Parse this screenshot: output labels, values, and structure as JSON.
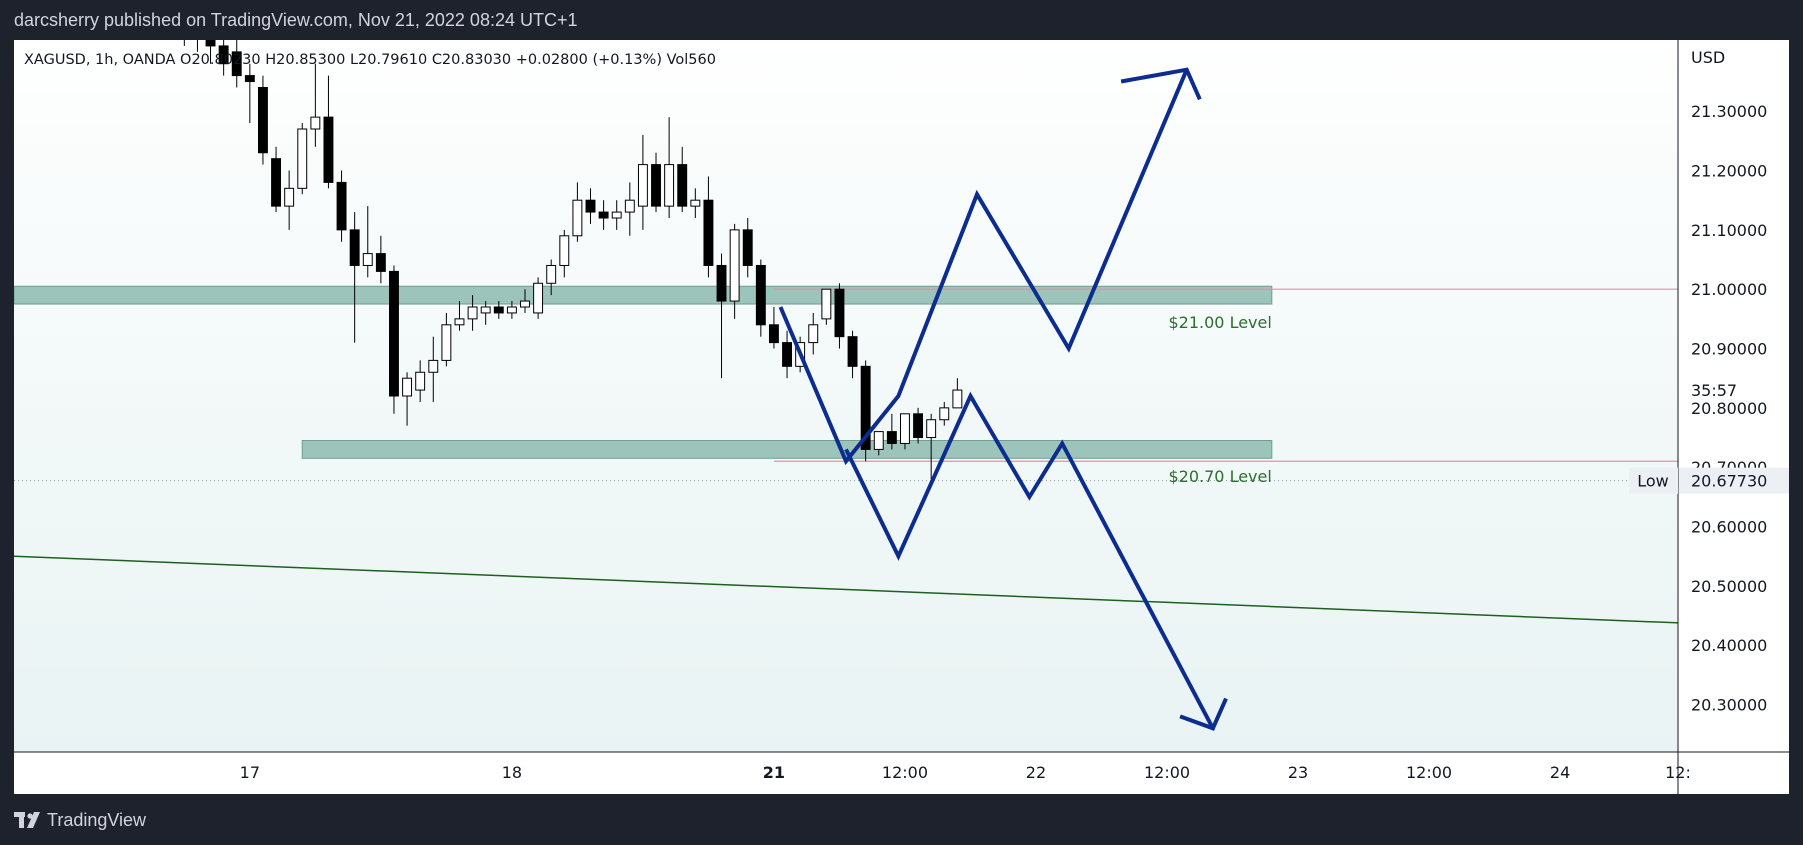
{
  "header": {
    "publisher": "darcsherry published on TradingView.com, Nov 21, 2022 08:24 UTC+1"
  },
  "footer": {
    "brand": "TradingView"
  },
  "colors": {
    "candle_up": "#ffffff",
    "candle_down": "#000000",
    "zone_fill": "#9dc4bb",
    "zone_border": "#6e9e92",
    "level_line": "#f18aa6",
    "trendline": "#1f5f1f",
    "projection": "#0d2c8f",
    "label_green": "#2e6d30"
  },
  "chart_data": {
    "type": "candlestick",
    "symbol_line": "XAGUSD, 1h, OANDA  O20.80230  H20.85300  L20.79610  C20.83030  +0.02800 (+0.13%)  Vol560",
    "currency": "USD",
    "ylim": [
      20.22,
      21.42
    ],
    "x_index_range": [
      -18,
      109
    ],
    "price_ticks": [
      "21.30000",
      "21.20000",
      "21.10000",
      "21.00000",
      "20.90000",
      "20.80000",
      "20.70000",
      "20.60000",
      "20.50000",
      "20.40000",
      "20.30000"
    ],
    "price_tick_values": [
      21.3,
      21.2,
      21.1,
      21.0,
      20.9,
      20.8,
      20.7,
      20.6,
      20.5,
      20.4,
      20.3
    ],
    "time_ticks": [
      {
        "label": "17",
        "index": 0,
        "bold": false
      },
      {
        "label": "18",
        "index": 20,
        "bold": false
      },
      {
        "label": "21",
        "index": 40,
        "bold": true
      },
      {
        "label": "12:00",
        "index": 50,
        "bold": false
      },
      {
        "label": "22",
        "index": 60,
        "bold": false
      },
      {
        "label": "12:00",
        "index": 70,
        "bold": false
      },
      {
        "label": "23",
        "index": 80,
        "bold": false
      },
      {
        "label": "12:00",
        "index": 90,
        "bold": false
      },
      {
        "label": "24",
        "index": 100,
        "bold": false
      },
      {
        "label": "12:",
        "index": 109,
        "bold": false
      }
    ],
    "countdown": {
      "label": "35:57",
      "price": 20.83
    },
    "low_marker": {
      "label": "Low",
      "value": "20.67730",
      "price": 20.6773
    },
    "zones": [
      {
        "from_index": -18,
        "to_index": 78,
        "top": 21.005,
        "bottom": 20.975
      },
      {
        "from_index": 4,
        "to_index": 78,
        "top": 20.745,
        "bottom": 20.715
      }
    ],
    "level_lines": [
      {
        "price": 21.0,
        "from_index": 40,
        "to_index": 118
      },
      {
        "price": 20.71,
        "from_index": 40,
        "to_index": 118
      }
    ],
    "labels": [
      {
        "text": "$21.00 Level",
        "price": 20.945,
        "index": 78
      },
      {
        "text": "$20.70 Level",
        "price": 20.685,
        "index": 78
      }
    ],
    "trendline": {
      "start": {
        "index": -18,
        "price": 20.55
      },
      "end": {
        "index": 112,
        "price": 20.435
      }
    },
    "projection_up": [
      {
        "index": 40.5,
        "price": 20.97
      },
      {
        "index": 45.5,
        "price": 20.71
      },
      {
        "index": 49.5,
        "price": 20.82
      },
      {
        "index": 55.5,
        "price": 21.16
      },
      {
        "index": 62.5,
        "price": 20.9
      },
      {
        "index": 71.5,
        "price": 21.37
      }
    ],
    "projection_up_head": [
      {
        "index": 66.5,
        "price": 21.35
      },
      {
        "index": 71.5,
        "price": 21.37
      },
      {
        "index": 72.5,
        "price": 21.32
      }
    ],
    "projection_down": [
      {
        "index": 45.5,
        "price": 20.73
      },
      {
        "index": 49.5,
        "price": 20.55
      },
      {
        "index": 55.0,
        "price": 20.82
      },
      {
        "index": 59.5,
        "price": 20.65
      },
      {
        "index": 62.0,
        "price": 20.74
      },
      {
        "index": 73.5,
        "price": 20.26
      }
    ],
    "projection_down_head": [
      {
        "index": 71.0,
        "price": 20.28
      },
      {
        "index": 73.5,
        "price": 20.26
      },
      {
        "index": 74.5,
        "price": 20.31
      }
    ],
    "candles": [
      {
        "t": -5,
        "o": 21.45,
        "h": 21.46,
        "l": 21.41,
        "c": 21.43
      },
      {
        "t": -4,
        "o": 21.44,
        "h": 21.46,
        "l": 21.4,
        "c": 21.45
      },
      {
        "t": -3,
        "o": 21.44,
        "h": 21.45,
        "l": 21.38,
        "c": 21.41
      },
      {
        "t": -2,
        "o": 21.41,
        "h": 21.43,
        "l": 21.36,
        "c": 21.38
      },
      {
        "t": -1,
        "o": 21.4,
        "h": 21.42,
        "l": 21.34,
        "c": 21.36
      },
      {
        "t": 0,
        "o": 21.36,
        "h": 21.38,
        "l": 21.28,
        "c": 21.35
      },
      {
        "t": 1,
        "o": 21.34,
        "h": 21.36,
        "l": 21.21,
        "c": 21.23
      },
      {
        "t": 2,
        "o": 21.22,
        "h": 21.24,
        "l": 21.13,
        "c": 21.14
      },
      {
        "t": 3,
        "o": 21.14,
        "h": 21.2,
        "l": 21.1,
        "c": 21.17
      },
      {
        "t": 4,
        "o": 21.17,
        "h": 21.28,
        "l": 21.16,
        "c": 21.27
      },
      {
        "t": 5,
        "o": 21.27,
        "h": 21.38,
        "l": 21.24,
        "c": 21.29
      },
      {
        "t": 6,
        "o": 21.29,
        "h": 21.36,
        "l": 21.17,
        "c": 21.18
      },
      {
        "t": 7,
        "o": 21.18,
        "h": 21.2,
        "l": 21.08,
        "c": 21.1
      },
      {
        "t": 8,
        "o": 21.1,
        "h": 21.13,
        "l": 20.91,
        "c": 21.04
      },
      {
        "t": 9,
        "o": 21.04,
        "h": 21.14,
        "l": 21.02,
        "c": 21.06
      },
      {
        "t": 10,
        "o": 21.06,
        "h": 21.09,
        "l": 21.01,
        "c": 21.03
      },
      {
        "t": 11,
        "o": 21.03,
        "h": 21.04,
        "l": 20.79,
        "c": 20.82
      },
      {
        "t": 12,
        "o": 20.82,
        "h": 20.86,
        "l": 20.77,
        "c": 20.85
      },
      {
        "t": 13,
        "o": 20.83,
        "h": 20.88,
        "l": 20.81,
        "c": 20.86
      },
      {
        "t": 14,
        "o": 20.86,
        "h": 20.92,
        "l": 20.81,
        "c": 20.88
      },
      {
        "t": 15,
        "o": 20.88,
        "h": 20.96,
        "l": 20.87,
        "c": 20.94
      },
      {
        "t": 16,
        "o": 20.94,
        "h": 20.98,
        "l": 20.93,
        "c": 20.95
      },
      {
        "t": 17,
        "o": 20.95,
        "h": 20.99,
        "l": 20.93,
        "c": 20.97
      },
      {
        "t": 18,
        "o": 20.96,
        "h": 20.98,
        "l": 20.94,
        "c": 20.97
      },
      {
        "t": 19,
        "o": 20.97,
        "h": 20.98,
        "l": 20.95,
        "c": 20.96
      },
      {
        "t": 20,
        "o": 20.96,
        "h": 20.98,
        "l": 20.95,
        "c": 20.97
      },
      {
        "t": 21,
        "o": 20.97,
        "h": 21.0,
        "l": 20.96,
        "c": 20.98
      },
      {
        "t": 22,
        "o": 20.96,
        "h": 21.02,
        "l": 20.95,
        "c": 21.01
      },
      {
        "t": 23,
        "o": 21.01,
        "h": 21.05,
        "l": 20.99,
        "c": 21.04
      },
      {
        "t": 24,
        "o": 21.04,
        "h": 21.1,
        "l": 21.02,
        "c": 21.09
      },
      {
        "t": 25,
        "o": 21.09,
        "h": 21.18,
        "l": 21.08,
        "c": 21.15
      },
      {
        "t": 26,
        "o": 21.15,
        "h": 21.17,
        "l": 21.11,
        "c": 21.13
      },
      {
        "t": 27,
        "o": 21.13,
        "h": 21.15,
        "l": 21.1,
        "c": 21.12
      },
      {
        "t": 28,
        "o": 21.12,
        "h": 21.15,
        "l": 21.1,
        "c": 21.13
      },
      {
        "t": 29,
        "o": 21.13,
        "h": 21.18,
        "l": 21.09,
        "c": 21.15
      },
      {
        "t": 30,
        "o": 21.14,
        "h": 21.26,
        "l": 21.1,
        "c": 21.21
      },
      {
        "t": 31,
        "o": 21.21,
        "h": 21.23,
        "l": 21.13,
        "c": 21.14
      },
      {
        "t": 32,
        "o": 21.14,
        "h": 21.29,
        "l": 21.12,
        "c": 21.21
      },
      {
        "t": 33,
        "o": 21.21,
        "h": 21.24,
        "l": 21.13,
        "c": 21.14
      },
      {
        "t": 34,
        "o": 21.14,
        "h": 21.17,
        "l": 21.12,
        "c": 21.15
      },
      {
        "t": 35,
        "o": 21.15,
        "h": 21.19,
        "l": 21.02,
        "c": 21.04
      },
      {
        "t": 36,
        "o": 21.04,
        "h": 21.06,
        "l": 20.85,
        "c": 20.98
      },
      {
        "t": 37,
        "o": 20.98,
        "h": 21.11,
        "l": 20.95,
        "c": 21.1
      },
      {
        "t": 38,
        "o": 21.1,
        "h": 21.12,
        "l": 21.02,
        "c": 21.04
      },
      {
        "t": 39,
        "o": 21.04,
        "h": 21.05,
        "l": 20.92,
        "c": 20.94
      },
      {
        "t": 40,
        "o": 20.94,
        "h": 20.97,
        "l": 20.9,
        "c": 20.91
      },
      {
        "t": 41,
        "o": 20.91,
        "h": 20.93,
        "l": 20.85,
        "c": 20.87
      },
      {
        "t": 42,
        "o": 20.87,
        "h": 20.92,
        "l": 20.86,
        "c": 20.91
      },
      {
        "t": 43,
        "o": 20.91,
        "h": 20.96,
        "l": 20.89,
        "c": 20.94
      },
      {
        "t": 44,
        "o": 20.95,
        "h": 21.0,
        "l": 20.94,
        "c": 21.0
      },
      {
        "t": 45,
        "o": 21.0,
        "h": 21.01,
        "l": 20.9,
        "c": 20.92
      },
      {
        "t": 46,
        "o": 20.92,
        "h": 20.93,
        "l": 20.85,
        "c": 20.87
      },
      {
        "t": 47,
        "o": 20.87,
        "h": 20.88,
        "l": 20.71,
        "c": 20.73
      },
      {
        "t": 48,
        "o": 20.73,
        "h": 20.76,
        "l": 20.72,
        "c": 20.76
      },
      {
        "t": 49,
        "o": 20.76,
        "h": 20.79,
        "l": 20.73,
        "c": 20.74
      },
      {
        "t": 50,
        "o": 20.74,
        "h": 20.79,
        "l": 20.73,
        "c": 20.79
      },
      {
        "t": 51,
        "o": 20.79,
        "h": 20.8,
        "l": 20.74,
        "c": 20.75
      },
      {
        "t": 52,
        "o": 20.75,
        "h": 20.79,
        "l": 20.68,
        "c": 20.78
      },
      {
        "t": 53,
        "o": 20.78,
        "h": 20.81,
        "l": 20.77,
        "c": 20.8
      },
      {
        "t": 54,
        "o": 20.8,
        "h": 20.85,
        "l": 20.8,
        "c": 20.83
      }
    ]
  }
}
